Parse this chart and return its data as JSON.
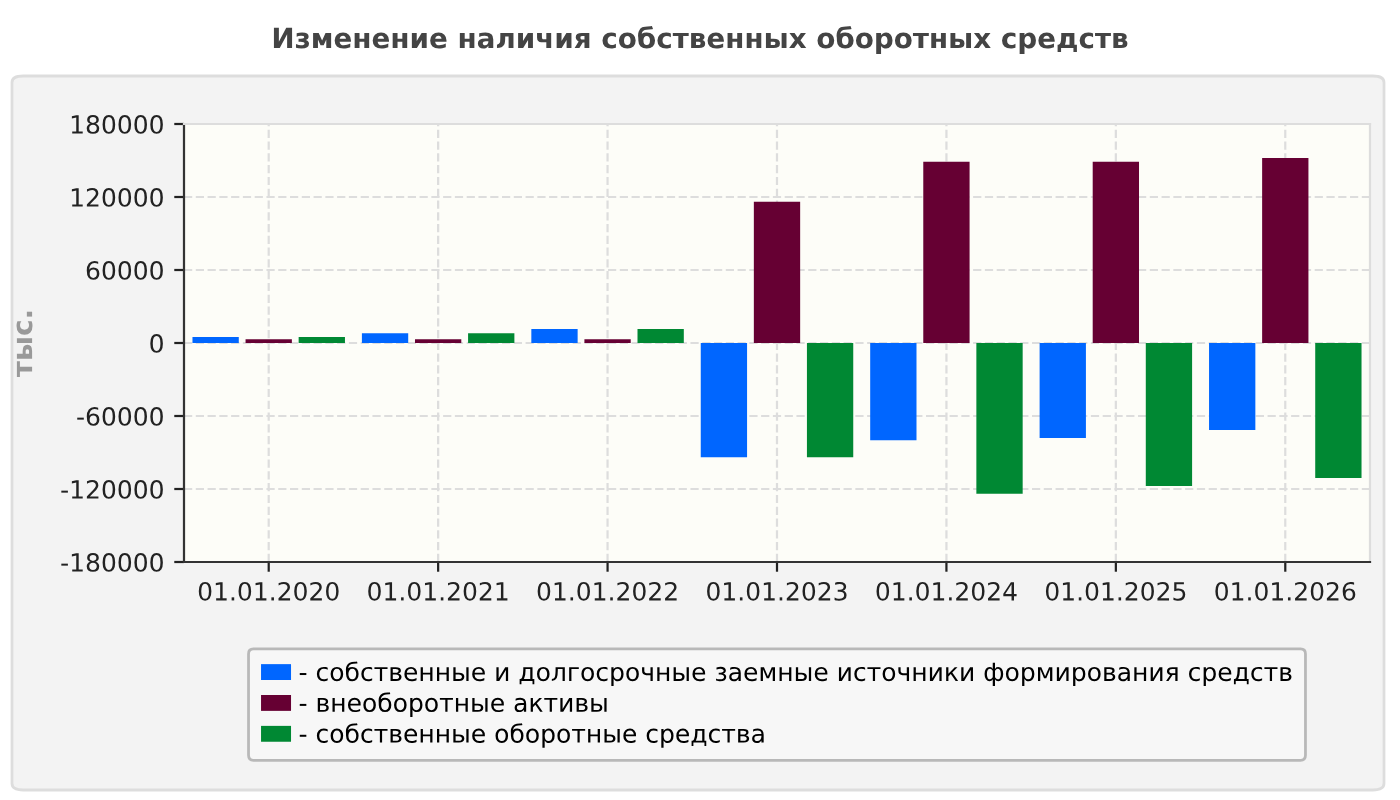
{
  "chart_data": {
    "type": "bar",
    "title": "Изменение наличия собственных оборотных средств",
    "ylabel": "тыс.",
    "categories": [
      "01.01.2020",
      "01.01.2021",
      "01.01.2022",
      "01.01.2023",
      "01.01.2024",
      "01.01.2025",
      "01.01.2026"
    ],
    "series": [
      {
        "name": "- собственные и долгосрочные заемные источники формирования средств",
        "color": "#0066ff",
        "values": [
          5000,
          8000,
          11500,
          -94000,
          -80000,
          -78000,
          -71500
        ]
      },
      {
        "name": "- внеоборотные активы",
        "color": "#660033",
        "values": [
          3000,
          3000,
          3000,
          116000,
          149000,
          149000,
          152000
        ]
      },
      {
        "name": "- собственные оборотные средства",
        "color": "#008833",
        "values": [
          5000,
          8000,
          11500,
          -94000,
          -124000,
          -117500,
          -111000
        ]
      }
    ],
    "ylim": [
      -180000,
      180000
    ],
    "yticks": [
      -180000,
      -120000,
      -60000,
      0,
      60000,
      120000,
      180000
    ],
    "grid": true,
    "legend": "bottom"
  }
}
